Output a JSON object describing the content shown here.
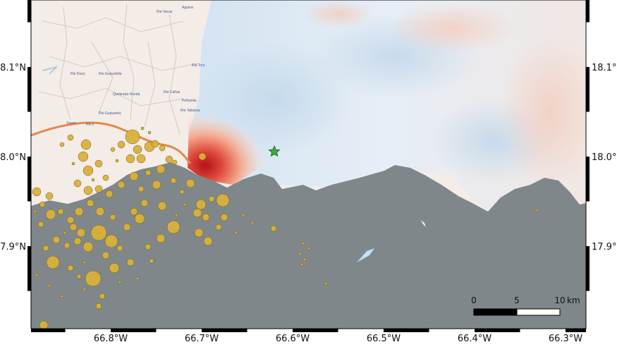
{
  "map": {
    "lat_labels": [
      {
        "lat": 18.1,
        "label": "18.1°N"
      },
      {
        "lat": 18.0,
        "label": "18.0°N"
      },
      {
        "lat": 17.9,
        "label": "17.9°N"
      }
    ],
    "lon_labels": [
      {
        "lon": -66.8,
        "label": "66.8°W"
      },
      {
        "lon": -66.7,
        "label": "66.7°W"
      },
      {
        "lon": -66.6,
        "label": "66.6°W"
      },
      {
        "lon": -66.5,
        "label": "66.5°W"
      },
      {
        "lon": -66.4,
        "label": "66.4°W"
      },
      {
        "lon": -66.3,
        "label": "66.3°W"
      }
    ],
    "scale_bar": {
      "ticks": [
        "0",
        "5",
        "10"
      ],
      "unit": "km"
    },
    "place_labels": [
      "Aguirre",
      "Rio Vacas",
      "Rio Toro",
      "Rio Duey",
      "Rio Guayanilla",
      "Quebrada Honda",
      "Rio Cañas",
      "Peñuelas",
      "Rio Tallaboa",
      "Rio Guayanés",
      "Yauco",
      "PR-2"
    ],
    "colors": {
      "ocean": "#7f878a",
      "land": "#f3ece7",
      "event_marker": "#d9b13c",
      "epicenter_star": "#3daa3d",
      "frame": "#000000"
    },
    "epicenter_icon": "star-icon"
  }
}
